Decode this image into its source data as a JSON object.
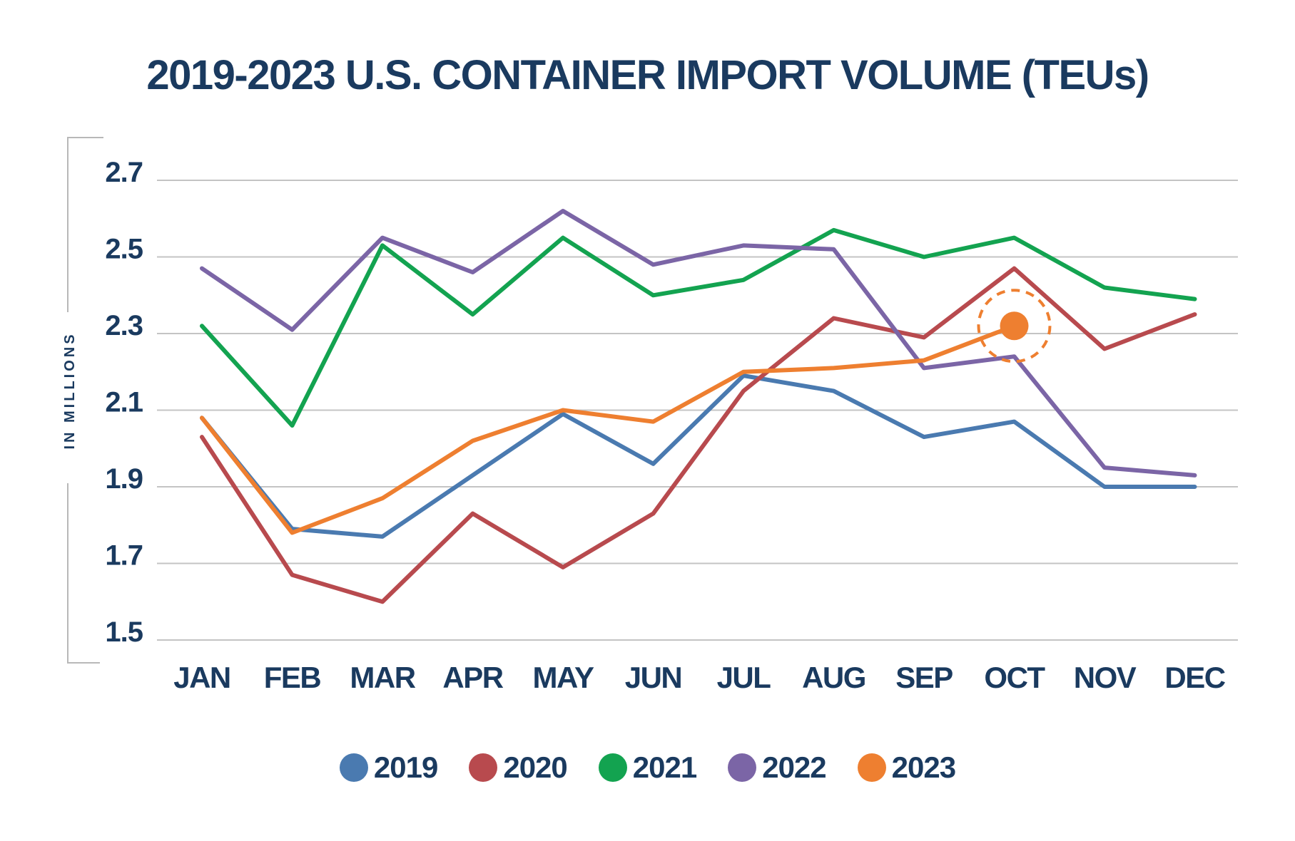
{
  "chart_data": {
    "type": "line",
    "title": "2019-2023 U.S. CONTAINER IMPORT VOLUME (TEUs)",
    "ylabel": "IN MILLIONS",
    "xlabel": "",
    "categories": [
      "JAN",
      "FEB",
      "MAR",
      "APR",
      "MAY",
      "JUN",
      "JUL",
      "AUG",
      "SEP",
      "OCT",
      "NOV",
      "DEC"
    ],
    "y_ticks": [
      "2.7",
      "2.5",
      "2.3",
      "2.1",
      "1.9",
      "1.7",
      "1.5"
    ],
    "ylim": [
      1.5,
      2.7
    ],
    "grid": true,
    "legend_position": "bottom",
    "series": [
      {
        "name": "2019",
        "color": "#4a7ab0",
        "values": [
          2.08,
          1.79,
          1.77,
          1.93,
          2.09,
          1.96,
          2.19,
          2.15,
          2.03,
          2.07,
          1.9,
          1.9
        ]
      },
      {
        "name": "2020",
        "color": "#b84a4e",
        "values": [
          2.03,
          1.67,
          1.6,
          1.83,
          1.69,
          1.83,
          2.15,
          2.34,
          2.29,
          2.47,
          2.26,
          2.35
        ]
      },
      {
        "name": "2021",
        "color": "#13a350",
        "values": [
          2.32,
          2.06,
          2.53,
          2.35,
          2.55,
          2.4,
          2.44,
          2.57,
          2.5,
          2.55,
          2.42,
          2.39
        ]
      },
      {
        "name": "2022",
        "color": "#7b65a6",
        "values": [
          2.47,
          2.31,
          2.55,
          2.46,
          2.62,
          2.48,
          2.53,
          2.52,
          2.21,
          2.24,
          1.95,
          1.93
        ]
      },
      {
        "name": "2023",
        "color": "#ee7f30",
        "values": [
          2.08,
          1.78,
          1.87,
          2.02,
          2.1,
          2.07,
          2.2,
          2.21,
          2.23,
          2.32,
          null,
          null
        ]
      }
    ],
    "highlight": {
      "series": "2023",
      "category": "OCT",
      "value": 2.32
    }
  }
}
